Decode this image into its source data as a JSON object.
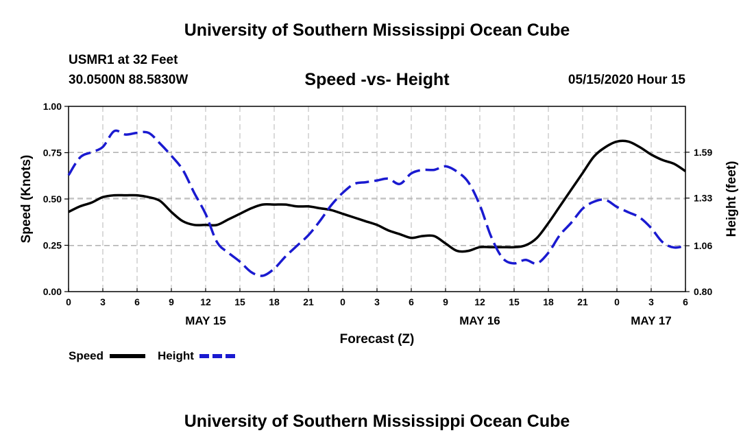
{
  "header": {
    "title": "University of Southern Mississippi Ocean Cube",
    "station": "USMR1 at 32 Feet",
    "coords": "30.0500N 88.5830W",
    "subtitle": "Speed -vs- Height",
    "datetime": "05/15/2020 Hour 15"
  },
  "footer": {
    "title": "University of Southern Mississippi Ocean Cube"
  },
  "legend": {
    "speed_label": "Speed",
    "height_label": "Height"
  },
  "colors": {
    "speed": "#000000",
    "height": "#1a1ad0",
    "grid": "#b4b4b4"
  },
  "chart_data": {
    "type": "line",
    "title": "Speed -vs- Height",
    "xlabel": "Forecast (Z)",
    "ylabel": "Speed (Knots)",
    "y2label": "Height (feet)",
    "xlim": [
      0,
      54
    ],
    "ylim": [
      0,
      1.0
    ],
    "y2lim": [
      0.8,
      1.85
    ],
    "x_ticks": [
      0,
      3,
      6,
      9,
      12,
      15,
      18,
      21,
      24,
      27,
      30,
      33,
      36,
      39,
      42,
      45,
      48,
      51,
      54
    ],
    "x_tick_labels": [
      "0",
      "3",
      "6",
      "9",
      "12",
      "15",
      "18",
      "21",
      "0",
      "3",
      "6",
      "9",
      "12",
      "15",
      "18",
      "21",
      "0",
      "3",
      "6"
    ],
    "day_labels": [
      {
        "x": 12,
        "label": "MAY 15"
      },
      {
        "x": 36,
        "label": "MAY 16"
      },
      {
        "x": 51,
        "label": "MAY 17"
      }
    ],
    "y_ticks": [
      0,
      0.25,
      0.5,
      0.75,
      1.0
    ],
    "y_tick_labels": [
      "0.00",
      "0.25",
      "0.50",
      "0.75",
      "1.00"
    ],
    "y2_ticks": [
      0.8,
      1.06,
      1.33,
      1.59
    ],
    "y2_tick_labels": [
      "0.80",
      "1.06",
      "1.33",
      "1.59"
    ],
    "series": [
      {
        "name": "Speed",
        "axis": "left",
        "style": "solid",
        "x": [
          0,
          1,
          2,
          3,
          4,
          5,
          6,
          7,
          8,
          9,
          10,
          11,
          12,
          13,
          14,
          15,
          16,
          17,
          18,
          19,
          20,
          21,
          22,
          23,
          24,
          25,
          26,
          27,
          28,
          29,
          30,
          31,
          32,
          33,
          34,
          35,
          36,
          37,
          38,
          39,
          40,
          41,
          42,
          43,
          44,
          45,
          46,
          47,
          48,
          49,
          50,
          51,
          52,
          53,
          54
        ],
        "values": [
          0.43,
          0.46,
          0.48,
          0.51,
          0.52,
          0.52,
          0.52,
          0.51,
          0.49,
          0.43,
          0.38,
          0.36,
          0.36,
          0.36,
          0.39,
          0.42,
          0.45,
          0.47,
          0.47,
          0.47,
          0.46,
          0.46,
          0.45,
          0.44,
          0.42,
          0.4,
          0.38,
          0.36,
          0.33,
          0.31,
          0.29,
          0.3,
          0.3,
          0.26,
          0.22,
          0.22,
          0.24,
          0.24,
          0.24,
          0.24,
          0.25,
          0.29,
          0.37,
          0.46,
          0.55,
          0.64,
          0.73,
          0.78,
          0.81,
          0.81,
          0.78,
          0.74,
          0.71,
          0.69,
          0.65
        ]
      },
      {
        "name": "Height",
        "axis": "right",
        "style": "dashed",
        "x": [
          0,
          1,
          2,
          3,
          4,
          5,
          6,
          7,
          8,
          9,
          10,
          11,
          12,
          13,
          14,
          15,
          16,
          17,
          18,
          19,
          20,
          21,
          22,
          23,
          24,
          25,
          26,
          27,
          28,
          29,
          30,
          31,
          32,
          33,
          34,
          35,
          36,
          37,
          38,
          39,
          40,
          41,
          42,
          43,
          44,
          45,
          46,
          47,
          48,
          49,
          50,
          51,
          52,
          53,
          54
        ],
        "values": [
          1.46,
          1.56,
          1.59,
          1.62,
          1.71,
          1.69,
          1.7,
          1.7,
          1.64,
          1.57,
          1.49,
          1.36,
          1.24,
          1.08,
          1.02,
          0.97,
          0.91,
          0.89,
          0.93,
          1.0,
          1.06,
          1.12,
          1.2,
          1.29,
          1.36,
          1.41,
          1.42,
          1.43,
          1.44,
          1.41,
          1.47,
          1.49,
          1.49,
          1.51,
          1.48,
          1.42,
          1.29,
          1.11,
          0.99,
          0.96,
          0.98,
          0.96,
          1.02,
          1.12,
          1.19,
          1.27,
          1.31,
          1.32,
          1.28,
          1.25,
          1.22,
          1.16,
          1.08,
          1.05,
          1.06
        ]
      }
    ]
  }
}
